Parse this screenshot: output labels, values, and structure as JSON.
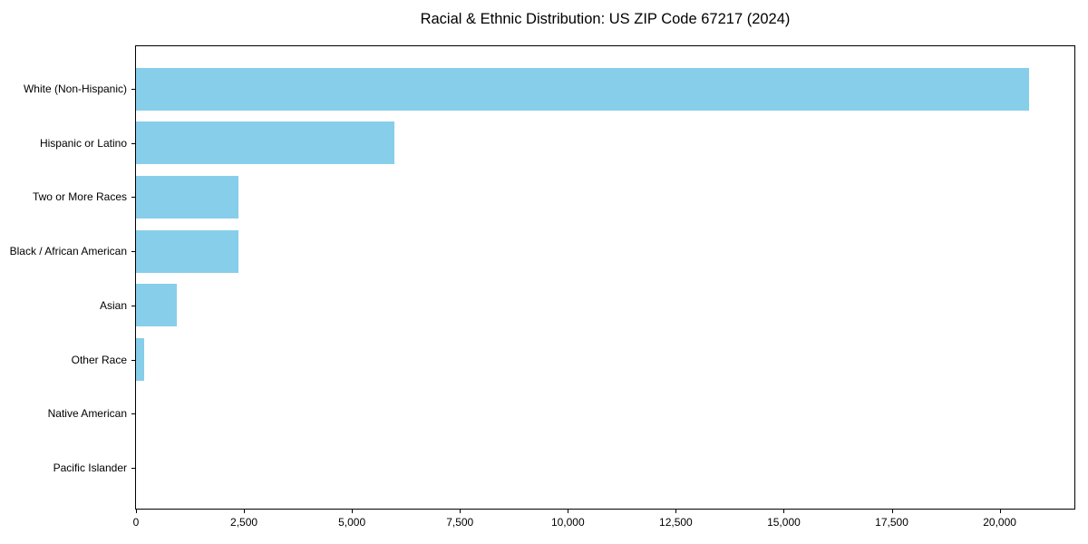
{
  "chart_data": {
    "type": "bar",
    "orientation": "horizontal",
    "title": "Racial & Ethnic Distribution: US ZIP Code 67217 (2024)",
    "categories": [
      "White (Non-Hispanic)",
      "Hispanic or Latino",
      "Two or More Races",
      "Black / African American",
      "Asian",
      "Other Race",
      "Native American",
      "Pacific Islander"
    ],
    "values": [
      20670,
      5990,
      2370,
      2380,
      950,
      180,
      0,
      0
    ],
    "xlabel": "",
    "ylabel": "",
    "xlim": [
      0,
      21730
    ],
    "xticks": [
      0,
      2500,
      5000,
      7500,
      10000,
      12500,
      15000,
      17500,
      20000
    ],
    "xtick_labels": [
      "0",
      "2,500",
      "5,000",
      "7,500",
      "10,000",
      "12,500",
      "15,000",
      "17,500",
      "20,000"
    ],
    "bar_color": "#87CEEB",
    "grid": false,
    "legend": null
  }
}
